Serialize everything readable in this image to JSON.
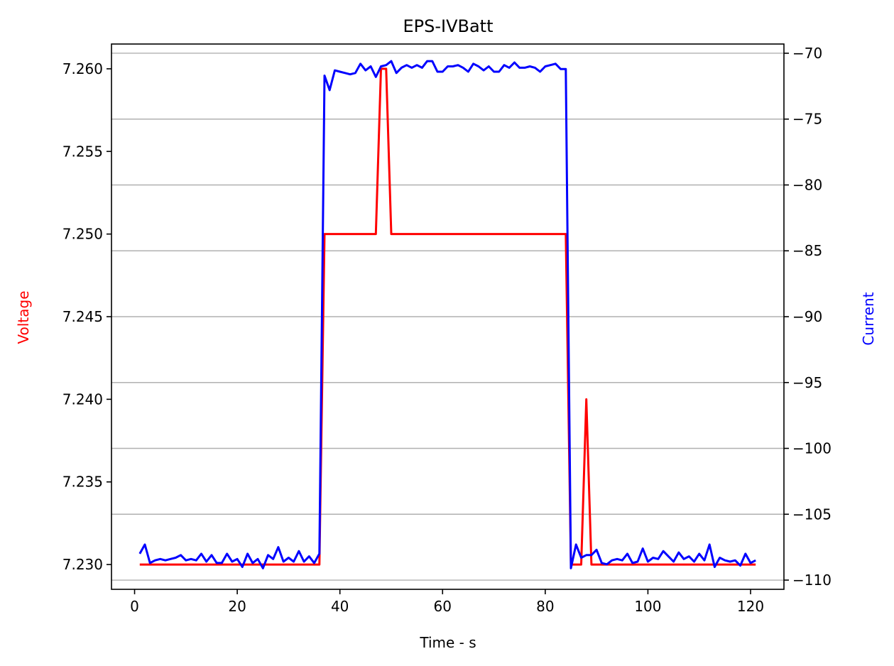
{
  "chart_data": {
    "type": "line",
    "title": "EPS-IVBatt",
    "xlabel": "Time - s",
    "xlim": [
      -4.5,
      126.5
    ],
    "xticks": [
      0,
      20,
      40,
      60,
      80,
      100,
      120
    ],
    "grid": "horizontal, right axis",
    "left_axis": {
      "label": "Voltage",
      "color": "#ff0000",
      "ylim": [
        7.2285,
        7.2615
      ],
      "ticks": [
        "7.230",
        "7.235",
        "7.240",
        "7.245",
        "7.250",
        "7.255",
        "7.260"
      ]
    },
    "right_axis": {
      "label": "Current",
      "color": "#0000ff",
      "ylim": [
        -110.7,
        -69.3
      ],
      "ticks": [
        "−70",
        "−75",
        "−80",
        "−85",
        "−90",
        "−95",
        "−100",
        "−105",
        "−110"
      ]
    },
    "series": [
      {
        "name": "Voltage",
        "axis": "left",
        "color": "#ff0000",
        "x": [
          1,
          36,
          37,
          47,
          48,
          49,
          50,
          84,
          85,
          87,
          88,
          89,
          121
        ],
        "y": [
          7.23,
          7.23,
          7.25,
          7.25,
          7.26,
          7.26,
          7.25,
          7.25,
          7.23,
          7.23,
          7.24,
          7.23,
          7.23
        ]
      },
      {
        "name": "Current",
        "axis": "right",
        "color": "#0000ff",
        "x": [
          1,
          2,
          3,
          4,
          5,
          6,
          7,
          8,
          9,
          10,
          11,
          12,
          13,
          14,
          15,
          16,
          17,
          18,
          19,
          20,
          21,
          22,
          23,
          24,
          25,
          26,
          27,
          28,
          29,
          30,
          31,
          32,
          33,
          34,
          35,
          36,
          37,
          38,
          39,
          40,
          41,
          42,
          43,
          44,
          45,
          46,
          47,
          48,
          49,
          50,
          51,
          52,
          53,
          54,
          55,
          56,
          57,
          58,
          59,
          60,
          61,
          62,
          63,
          64,
          65,
          66,
          67,
          68,
          69,
          70,
          71,
          72,
          73,
          74,
          75,
          76,
          77,
          78,
          79,
          80,
          81,
          82,
          83,
          84,
          85,
          86,
          87,
          88,
          89,
          90,
          91,
          92,
          93,
          94,
          95,
          96,
          97,
          98,
          99,
          100,
          101,
          102,
          103,
          104,
          105,
          106,
          107,
          108,
          109,
          110,
          111,
          112,
          113,
          114,
          115,
          116,
          117,
          118,
          119,
          120,
          121
        ],
        "y": [
          -108.0,
          -107.3,
          -108.7,
          -108.5,
          -108.4,
          -108.5,
          -108.4,
          -108.3,
          -108.1,
          -108.5,
          -108.4,
          -108.5,
          -108.0,
          -108.6,
          -108.1,
          -108.7,
          -108.7,
          -108.0,
          -108.6,
          -108.4,
          -109.0,
          -108.0,
          -108.7,
          -108.4,
          -109.1,
          -108.1,
          -108.4,
          -107.5,
          -108.6,
          -108.3,
          -108.6,
          -107.8,
          -108.6,
          -108.2,
          -108.7,
          -108.0,
          -71.7,
          -72.8,
          -71.3,
          -71.4,
          -71.5,
          -71.6,
          -71.5,
          -70.8,
          -71.3,
          -71.0,
          -71.8,
          -71.0,
          -70.9,
          -70.6,
          -71.5,
          -71.1,
          -70.9,
          -71.1,
          -70.9,
          -71.1,
          -70.6,
          -70.6,
          -71.4,
          -71.4,
          -71.0,
          -71.0,
          -70.9,
          -71.1,
          -71.4,
          -70.8,
          -71.0,
          -71.3,
          -71.0,
          -71.4,
          -71.4,
          -70.9,
          -71.1,
          -70.7,
          -71.1,
          -71.1,
          -71.0,
          -71.1,
          -71.4,
          -71.0,
          -70.9,
          -70.8,
          -71.2,
          -71.2,
          -109.1,
          -107.3,
          -108.3,
          -108.1,
          -108.1,
          -107.7,
          -108.7,
          -108.8,
          -108.5,
          -108.4,
          -108.5,
          -108.0,
          -108.7,
          -108.6,
          -107.6,
          -108.6,
          -108.3,
          -108.4,
          -107.8,
          -108.2,
          -108.6,
          -107.9,
          -108.4,
          -108.2,
          -108.6,
          -108.0,
          -108.5,
          -107.3,
          -109.0,
          -108.3,
          -108.5,
          -108.6,
          -108.5,
          -108.9,
          -108.0,
          -108.7,
          -108.5
        ]
      }
    ]
  }
}
